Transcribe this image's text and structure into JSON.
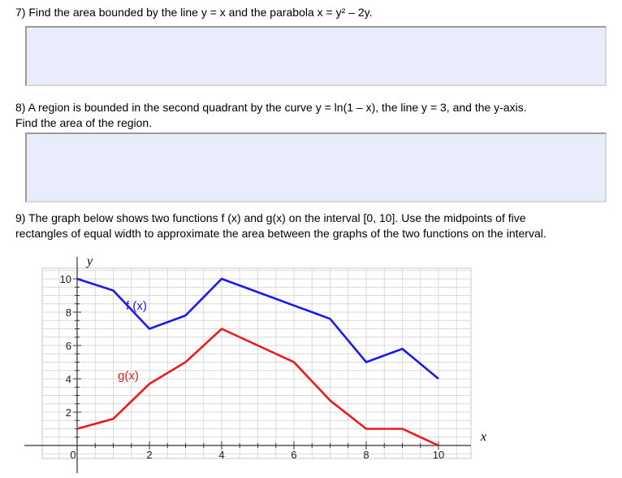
{
  "questions": {
    "q7": {
      "number": "7)",
      "text": "Find the area bounded by the line y = x and the parabola x = y² – 2y."
    },
    "q8": {
      "number": "8)",
      "line1": "A region is bounded in the second quadrant by the curve y = ln(1 – x), the line y = 3, and the y-axis.",
      "line2": "Find the area of the region."
    },
    "q9": {
      "number": "9)",
      "line1": "The graph below shows two functions f (x) and g(x) on the interval [0, 10]. Use the midpoints of five",
      "line2": "rectangles of equal width to approximate the area between the graphs of the two functions on the interval."
    }
  },
  "chart_data": {
    "type": "line",
    "xlabel": "x",
    "ylabel": "y",
    "xlim": [
      0,
      10
    ],
    "ylim": [
      0,
      10
    ],
    "x_ticks": [
      "0",
      "2",
      "4",
      "6",
      "8",
      "10"
    ],
    "y_ticks": [
      "2",
      "4",
      "6",
      "8",
      "10"
    ],
    "grid": true,
    "series": [
      {
        "name": "f (x)",
        "color": "#1a1aee",
        "x": [
          0,
          1,
          2,
          3,
          4,
          5,
          6,
          7,
          8,
          9,
          10
        ],
        "y": [
          10,
          9.3,
          7,
          7.8,
          10,
          9.2,
          8.4,
          7.6,
          5,
          5.8,
          4
        ]
      },
      {
        "name": "g(x)",
        "color": "#ee1a1a",
        "x": [
          0,
          1,
          2,
          3,
          4,
          5,
          6,
          7,
          8,
          9,
          10
        ],
        "y": [
          1,
          1.6,
          3.7,
          5,
          7,
          6,
          5,
          2.7,
          1,
          1,
          0
        ]
      }
    ]
  }
}
